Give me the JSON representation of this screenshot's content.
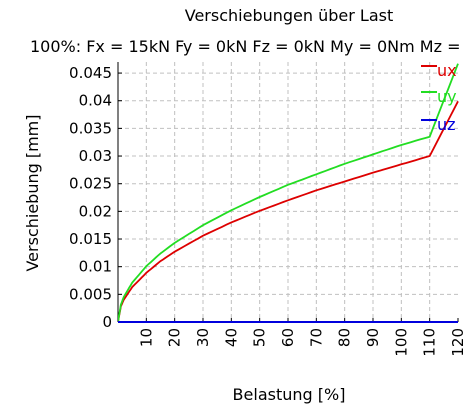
{
  "chart_data": {
    "type": "line",
    "title": "Verschiebungen über Last",
    "subtitle": "100%: Fx = 15kN Fy = 0kN Fz = 0kN My = 0Nm Mz =",
    "xlabel": "Belastung [%]",
    "ylabel": "Verschiebung [mm]",
    "xlim": [
      0,
      120
    ],
    "ylim": [
      0,
      0.047
    ],
    "grid": true,
    "legend_position": "top-right",
    "x_ticks": [
      "10",
      "20",
      "30",
      "40",
      "50",
      "60",
      "70",
      "80",
      "90",
      "100",
      "110",
      "120"
    ],
    "y_ticks": [
      "0",
      "0.005",
      "0.01",
      "0.015",
      "0.02",
      "0.025",
      "0.03",
      "0.035",
      "0.04",
      "0.045"
    ],
    "x": [
      0,
      1,
      2,
      5,
      10,
      15,
      20,
      30,
      40,
      50,
      60,
      70,
      80,
      90,
      100,
      110,
      120
    ],
    "series": [
      {
        "name": "ux",
        "color": "#dd0000",
        "values": [
          0,
          0.0028,
          0.004,
          0.0063,
          0.0089,
          0.011,
          0.0127,
          0.0156,
          0.018,
          0.0201,
          0.022,
          0.0238,
          0.0254,
          0.027,
          0.0285,
          0.03,
          0.0399
        ]
      },
      {
        "name": "uy",
        "color": "#22dd22",
        "values": [
          0,
          0.0031,
          0.0045,
          0.0071,
          0.0101,
          0.0124,
          0.0143,
          0.0175,
          0.0202,
          0.0226,
          0.0248,
          0.0267,
          0.0286,
          0.0303,
          0.032,
          0.0335,
          0.0467
        ]
      },
      {
        "name": "uz",
        "color": "#0000dd",
        "values": [
          0,
          0,
          0,
          0,
          0,
          0,
          0,
          0,
          0,
          0,
          0,
          0,
          0,
          0,
          0,
          0,
          0
        ]
      }
    ]
  }
}
